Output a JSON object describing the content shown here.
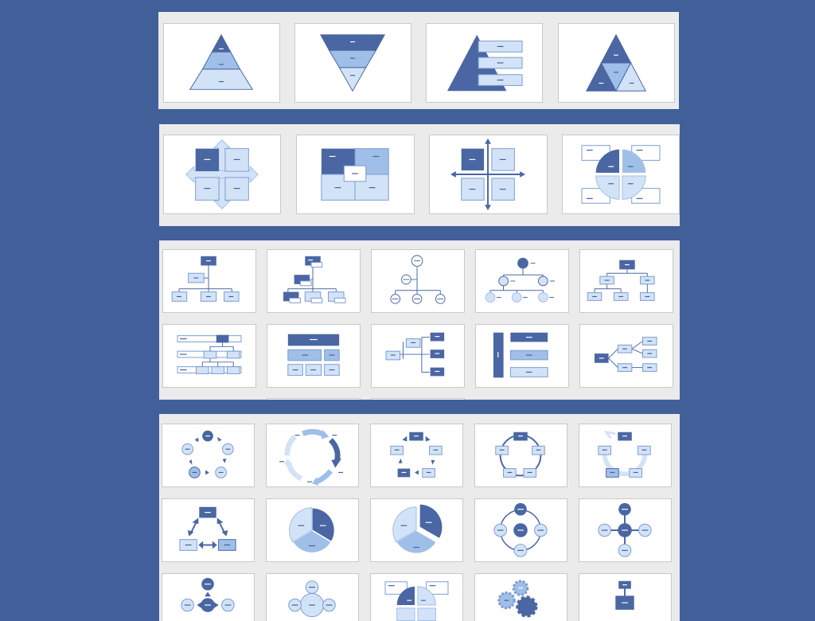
{
  "gallery": {
    "background_color": "#41609a",
    "panel_color": "#ebebeb",
    "accent_dark": "#4a67a3",
    "accent_mid": "#9fbfe8",
    "accent_light": "#d3e3f7",
    "sections": [
      {
        "name": "pyramid-layouts",
        "items": [
          "basic-pyramid",
          "inverted-pyramid",
          "pyramid-list",
          "segmented-pyramid"
        ]
      },
      {
        "name": "matrix-layouts",
        "items": [
          "basic-matrix",
          "titled-matrix",
          "grid-matrix",
          "cycle-matrix"
        ]
      },
      {
        "name": "hierarchy-layouts",
        "items": [
          "organization-chart",
          "name-and-title-org-chart",
          "circle-picture-hierarchy",
          "picture-org-chart",
          "hierarchy",
          "labeled-hierarchy",
          "table-hierarchy",
          "horizontal-hierarchy",
          "hierarchy-list",
          "horizontal-multi-level-hierarchy"
        ]
      },
      {
        "name": "cycle-layouts",
        "items": [
          "basic-cycle",
          "continuous-cycle",
          "text-cycle",
          "block-cycle",
          "nondirectional-cycle",
          "segmented-cycle-arrows",
          "basic-pie",
          "segmented-pie",
          "radial-cycle",
          "basic-radial",
          "diverging-radial",
          "radial-venn",
          "cycle-matrix-2",
          "gear",
          "converging-radial"
        ]
      }
    ]
  }
}
